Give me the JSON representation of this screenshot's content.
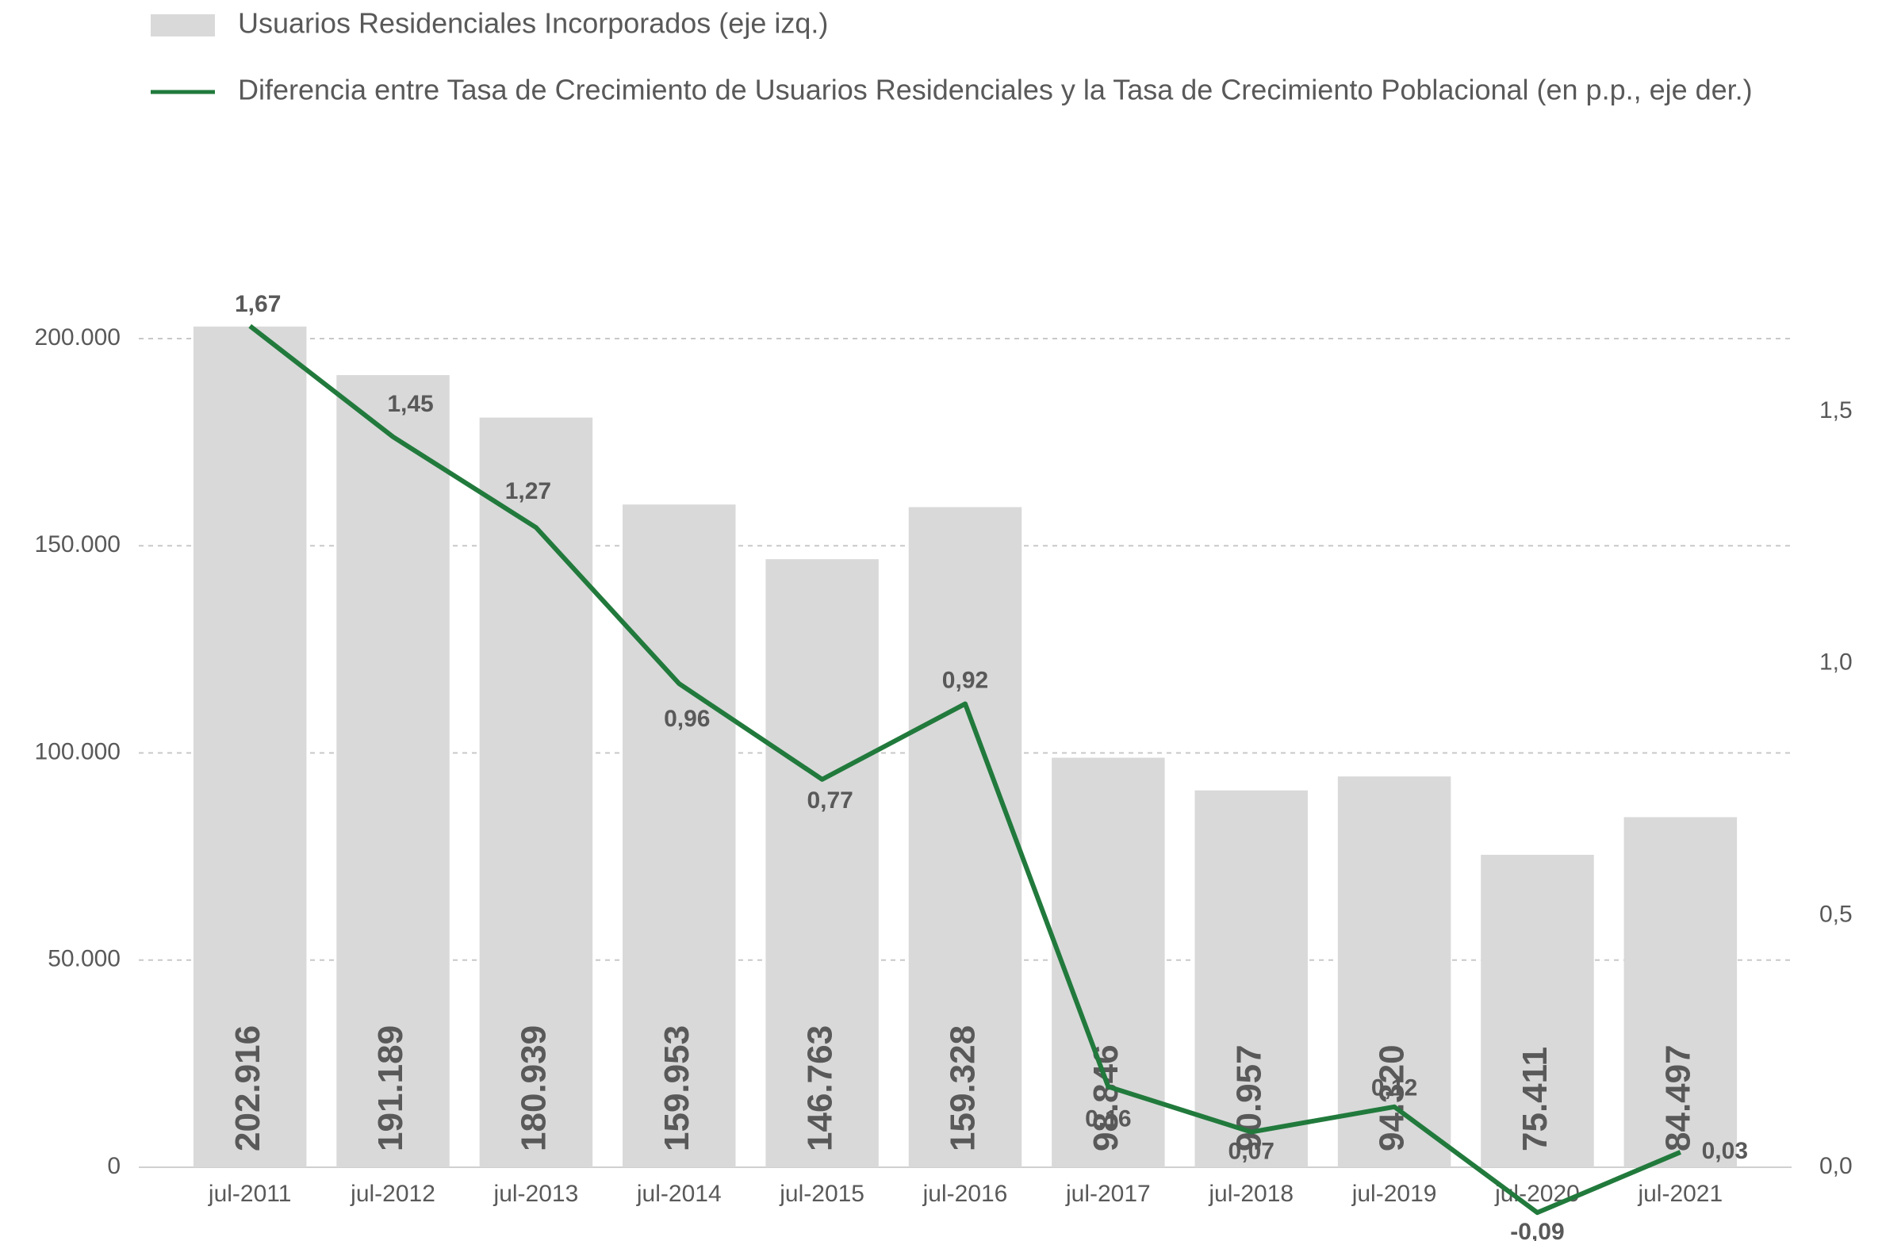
{
  "chart_data": {
    "type": "bar-line",
    "categories": [
      "jul-2011",
      "jul-2012",
      "jul-2013",
      "jul-2014",
      "jul-2015",
      "jul-2016",
      "jul-2017",
      "jul-2018",
      "jul-2019",
      "jul-2020",
      "jul-2021"
    ],
    "series": [
      {
        "name": "Usuarios Residenciales Incorporados (eje izq.)",
        "type": "bar",
        "color": "#d9d9d9",
        "values": [
          202916,
          191189,
          180939,
          159953,
          146763,
          159328,
          98846,
          90957,
          94320,
          75411,
          84497
        ],
        "value_labels": [
          "202.916",
          "191.189",
          "180.939",
          "159.953",
          "146.763",
          "159.328",
          "98.846",
          "90.957",
          "94.320",
          "75.411",
          "84.497"
        ]
      },
      {
        "name": "Diferencia entre Tasa de Crecimiento de Usuarios Residenciales y la Tasa de Crecimiento Poblacional (en p.p., eje der.)",
        "type": "line",
        "axis": "y2",
        "color": "#217a3c",
        "values": [
          1.67,
          1.45,
          1.27,
          0.96,
          0.77,
          0.92,
          0.16,
          0.07,
          0.12,
          -0.09,
          0.03
        ],
        "value_labels": [
          "1,67",
          "1,45",
          "1,27",
          "0,96",
          "0,77",
          "0,92",
          "0,16",
          "0,07",
          "0,12",
          "-0,09",
          "0,03"
        ]
      }
    ],
    "ylim": [
      0,
      200000
    ],
    "yticks": [
      0,
      {
        "value": 50000,
        "label": "50.000"
      },
      {
        "value": 100000,
        "label": "100.000"
      },
      {
        "value": 150000,
        "label": "150.000"
      },
      {
        "value": 200000,
        "label": "200.000"
      }
    ],
    "y2lim": [
      0,
      1.645
    ],
    "y2ticks": [
      {
        "value": 0,
        "label": "0,0"
      },
      {
        "value": 0.5,
        "label": "0,5"
      },
      {
        "value": 1.0,
        "label": "1,0"
      },
      {
        "value": 1.5,
        "label": "1,5"
      }
    ],
    "grid": true,
    "legend": "top-left"
  }
}
